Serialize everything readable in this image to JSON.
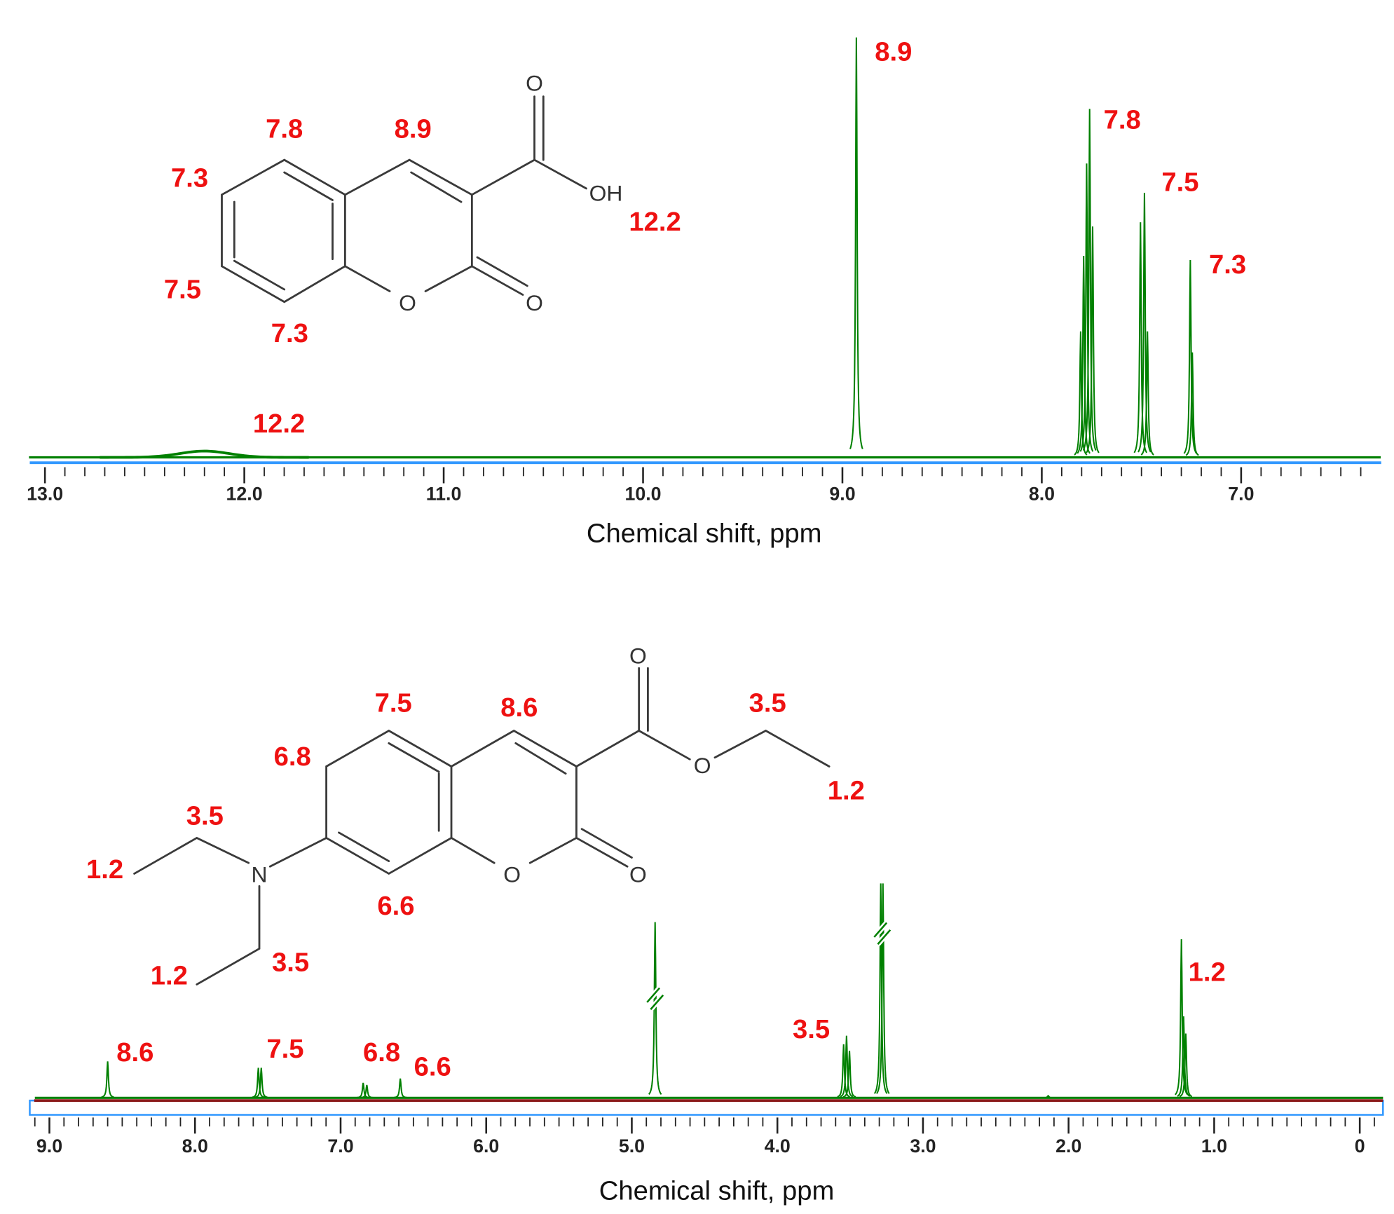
{
  "chart_data": [
    {
      "type": "line",
      "subtype": "NMR spectrum",
      "xlabel": "Chemical shift, ppm",
      "xlim": [
        13.08,
        6.3
      ],
      "x_reversed": true,
      "tick_labels": [
        "13.0",
        "12.0",
        "11.0",
        "10.0",
        "9.0",
        "8.0",
        "7.0"
      ],
      "tick_values": [
        13,
        12,
        11,
        10,
        9,
        8,
        7
      ],
      "line_color": "#008000",
      "axis_color": "#3399ff",
      "peaks": [
        {
          "ppm": 12.2,
          "intensity": 0.015,
          "width": 0.35
        },
        {
          "ppm": 8.93,
          "intensity": 1.0
        },
        {
          "ppm": 7.805,
          "intensity": 0.3
        },
        {
          "ppm": 7.79,
          "intensity": 0.48
        },
        {
          "ppm": 7.775,
          "intensity": 0.7
        },
        {
          "ppm": 7.76,
          "intensity": 0.83
        },
        {
          "ppm": 7.745,
          "intensity": 0.55
        },
        {
          "ppm": 7.505,
          "intensity": 0.56
        },
        {
          "ppm": 7.485,
          "intensity": 0.63
        },
        {
          "ppm": 7.47,
          "intensity": 0.3
        },
        {
          "ppm": 7.255,
          "intensity": 0.47
        },
        {
          "ppm": 7.245,
          "intensity": 0.25
        }
      ],
      "annotations": [
        {
          "text": "8.9",
          "ppm": 8.93
        },
        {
          "text": "7.8",
          "ppm": 7.78
        },
        {
          "text": "7.5",
          "ppm": 7.49
        },
        {
          "text": "7.3",
          "ppm": 7.25
        },
        {
          "text": "12.2",
          "ppm": 12.2
        }
      ],
      "structure": {
        "atom_labels": [
          "O",
          "OH",
          "O",
          "O"
        ],
        "shift_labels": [
          "7.8",
          "8.9",
          "7.3",
          "12.2",
          "7.5",
          "7.3"
        ]
      }
    },
    {
      "type": "line",
      "subtype": "NMR spectrum",
      "xlabel": "Chemical shift, ppm",
      "xlim": [
        9.1,
        -0.16
      ],
      "x_reversed": true,
      "tick_labels": [
        "9.0",
        "8.0",
        "7.0",
        "6.0",
        "5.0",
        "4.0",
        "3.0",
        "2.0",
        "1.0",
        "0"
      ],
      "tick_values": [
        9,
        8,
        7,
        6,
        5,
        4,
        3,
        2,
        1,
        0
      ],
      "line_color": "#008000",
      "axis_color": "#3399ff",
      "peaks": [
        {
          "ppm": 8.6,
          "intensity": 0.17
        },
        {
          "ppm": 7.565,
          "intensity": 0.14
        },
        {
          "ppm": 7.545,
          "intensity": 0.14
        },
        {
          "ppm": 6.845,
          "intensity": 0.07
        },
        {
          "ppm": 6.82,
          "intensity": 0.06
        },
        {
          "ppm": 6.59,
          "intensity": 0.09
        },
        {
          "ppm": 4.84,
          "intensity": 0.82,
          "truncated": true
        },
        {
          "ppm": 3.545,
          "intensity": 0.25
        },
        {
          "ppm": 3.525,
          "intensity": 0.29
        },
        {
          "ppm": 3.505,
          "intensity": 0.22
        },
        {
          "ppm": 3.29,
          "intensity": 1.0,
          "truncated": true
        },
        {
          "ppm": 3.275,
          "intensity": 1.0,
          "truncated": true
        },
        {
          "ppm": 2.14,
          "intensity": 0.01
        },
        {
          "ppm": 1.225,
          "intensity": 0.74
        },
        {
          "ppm": 1.21,
          "intensity": 0.38
        },
        {
          "ppm": 1.195,
          "intensity": 0.3
        }
      ],
      "annotations": [
        {
          "text": "8.6",
          "ppm": 8.6
        },
        {
          "text": "7.5",
          "ppm": 7.55
        },
        {
          "text": "6.8",
          "ppm": 6.83
        },
        {
          "text": "6.6",
          "ppm": 6.59
        },
        {
          "text": "3.5",
          "ppm": 3.52
        },
        {
          "text": "1.2",
          "ppm": 1.21
        }
      ],
      "structure": {
        "atom_labels": [
          "O",
          "O",
          "O",
          "O",
          "N"
        ],
        "shift_labels": [
          "7.5",
          "8.6",
          "3.5",
          "6.8",
          "1.2",
          "3.5",
          "1.2",
          "6.6",
          "1.2",
          "3.5"
        ]
      }
    }
  ]
}
